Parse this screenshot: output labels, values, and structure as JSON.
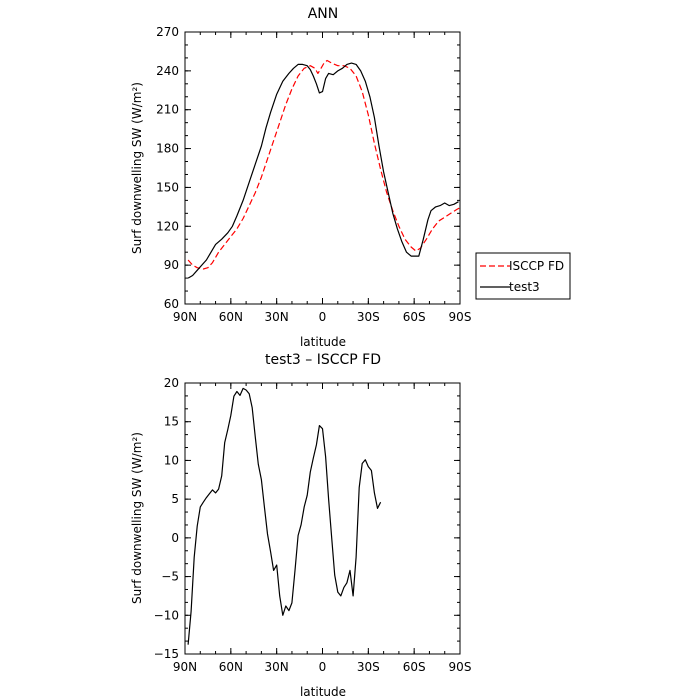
{
  "chart_data": [
    {
      "type": "line",
      "title": "ANN",
      "xlabel": "latitude",
      "ylabel": "Surf downwelling SW (W/m²)",
      "xlim": [
        90,
        -90
      ],
      "ylim": [
        60,
        270
      ],
      "x_ticks": [
        90,
        60,
        30,
        0,
        -30,
        -60,
        -90
      ],
      "x_tick_labels": [
        "90N",
        "60N",
        "30N",
        "0",
        "30S",
        "60S",
        "90S"
      ],
      "y_ticks": [
        60,
        90,
        120,
        150,
        180,
        210,
        240,
        270
      ],
      "y_tick_labels": [
        "60",
        "90",
        "120",
        "150",
        "180",
        "210",
        "240",
        "270"
      ],
      "legend_position": "right, outside",
      "series": [
        {
          "name": "ISCCP FD",
          "color": "#ff0000",
          "dash": "dashed",
          "points": [
            [
              88,
              94
            ],
            [
              85,
              90
            ],
            [
              82,
              88
            ],
            [
              78,
              87
            ],
            [
              75,
              88
            ],
            [
              72,
              92
            ],
            [
              68,
              100
            ],
            [
              64,
              106
            ],
            [
              60,
              112
            ],
            [
              56,
              118
            ],
            [
              52,
              126
            ],
            [
              48,
              136
            ],
            [
              44,
              146
            ],
            [
              40,
              158
            ],
            [
              36,
              172
            ],
            [
              32,
              186
            ],
            [
              28,
              200
            ],
            [
              24,
              214
            ],
            [
              20,
              226
            ],
            [
              16,
              236
            ],
            [
              12,
              242
            ],
            [
              8,
              244
            ],
            [
              5,
              242
            ],
            [
              3,
              238
            ],
            [
              1,
              242
            ],
            [
              -1,
              246
            ],
            [
              -3,
              248
            ],
            [
              -6,
              246
            ],
            [
              -10,
              244
            ],
            [
              -14,
              244
            ],
            [
              -18,
              242
            ],
            [
              -22,
              236
            ],
            [
              -26,
              224
            ],
            [
              -30,
              206
            ],
            [
              -34,
              184
            ],
            [
              -38,
              164
            ],
            [
              -42,
              146
            ],
            [
              -46,
              132
            ],
            [
              -50,
              120
            ],
            [
              -54,
              110
            ],
            [
              -58,
              104
            ],
            [
              -61,
              101
            ],
            [
              -64,
              103
            ],
            [
              -68,
              110
            ],
            [
              -72,
              118
            ],
            [
              -76,
              124
            ],
            [
              -80,
              127
            ],
            [
              -84,
              130
            ],
            [
              -88,
              133
            ],
            [
              -89.5,
              134
            ]
          ]
        },
        {
          "name": "test3",
          "color": "#000000",
          "dash": "solid",
          "points": [
            [
              88,
              80
            ],
            [
              85,
              82
            ],
            [
              82,
              86
            ],
            [
              79,
              90
            ],
            [
              76,
              94
            ],
            [
              73,
              100
            ],
            [
              70,
              106
            ],
            [
              66,
              110
            ],
            [
              62,
              115
            ],
            [
              59,
              120
            ],
            [
              56,
              128
            ],
            [
              52,
              140
            ],
            [
              48,
              154
            ],
            [
              44,
              168
            ],
            [
              40,
              182
            ],
            [
              37,
              196
            ],
            [
              34,
              208
            ],
            [
              30,
              222
            ],
            [
              26,
              232
            ],
            [
              22,
              238
            ],
            [
              19,
              242
            ],
            [
              16,
              245
            ],
            [
              13,
              245
            ],
            [
              10,
              244
            ],
            [
              8,
              241
            ],
            [
              6,
              236
            ],
            [
              4,
              230
            ],
            [
              2,
              223
            ],
            [
              0,
              224
            ],
            [
              -2,
              234
            ],
            [
              -4,
              238
            ],
            [
              -7,
              237
            ],
            [
              -10,
              240
            ],
            [
              -13,
              242
            ],
            [
              -16,
              245
            ],
            [
              -19,
              246
            ],
            [
              -22,
              245
            ],
            [
              -25,
              240
            ],
            [
              -28,
              232
            ],
            [
              -31,
              220
            ],
            [
              -34,
              204
            ],
            [
              -37,
              182
            ],
            [
              -40,
              162
            ],
            [
              -43,
              146
            ],
            [
              -46,
              130
            ],
            [
              -49,
              118
            ],
            [
              -52,
              108
            ],
            [
              -55,
              100
            ],
            [
              -58,
              97
            ],
            [
              -61,
              97
            ],
            [
              -63,
              97
            ],
            [
              -66,
              110
            ],
            [
              -69,
              125
            ],
            [
              -71,
              132
            ],
            [
              -74,
              135
            ],
            [
              -77,
              136
            ],
            [
              -80,
              138
            ],
            [
              -83,
              136
            ],
            [
              -86,
              137
            ],
            [
              -89,
              139
            ]
          ]
        }
      ]
    },
    {
      "type": "line",
      "title": "test3 – ISCCP FD",
      "xlabel": "latitude",
      "ylabel": "Surf downwelling SW (W/m²)",
      "xlim": [
        90,
        -90
      ],
      "ylim": [
        -15,
        20
      ],
      "x_ticks": [
        90,
        60,
        30,
        0,
        -30,
        -60,
        -90
      ],
      "x_tick_labels": [
        "90N",
        "60N",
        "30N",
        "0",
        "30S",
        "60S",
        "90S"
      ],
      "y_ticks": [
        -15,
        -10,
        -5,
        0,
        5,
        10,
        15,
        20
      ],
      "y_tick_labels": [
        "−15",
        "−10",
        "−5",
        "0",
        "5",
        "10",
        "15",
        "20"
      ],
      "series": [
        {
          "color": "#000000",
          "dash": "solid",
          "points": [
            [
              88,
              -13.8
            ],
            [
              86,
              -9.5
            ],
            [
              84,
              -2.5
            ],
            [
              82,
              1.5
            ],
            [
              80,
              4
            ],
            [
              78,
              4.6
            ],
            [
              76,
              5.2
            ],
            [
              74,
              5.7
            ],
            [
              72,
              6.2
            ],
            [
              70,
              5.8
            ],
            [
              68,
              6.3
            ],
            [
              66,
              8
            ],
            [
              64,
              12.3
            ],
            [
              62,
              14
            ],
            [
              60,
              15.8
            ],
            [
              58,
              18.3
            ],
            [
              56,
              18.9
            ],
            [
              54,
              18.4
            ],
            [
              52,
              19.3
            ],
            [
              50,
              19.1
            ],
            [
              48,
              18.6
            ],
            [
              46,
              16.8
            ],
            [
              44,
              13
            ],
            [
              42,
              9.5
            ],
            [
              40,
              7.5
            ],
            [
              38,
              4
            ],
            [
              36,
              0.5
            ],
            [
              34,
              -1.8
            ],
            [
              32,
              -4.2
            ],
            [
              30,
              -3.5
            ],
            [
              28,
              -7.5
            ],
            [
              26,
              -10
            ],
            [
              24,
              -8.8
            ],
            [
              22,
              -9.4
            ],
            [
              20,
              -8.4
            ],
            [
              18,
              -4.2
            ],
            [
              16,
              0.3
            ],
            [
              14,
              1.7
            ],
            [
              12,
              4
            ],
            [
              10,
              5.5
            ],
            [
              8,
              8.5
            ],
            [
              6,
              10.3
            ],
            [
              4,
              12
            ],
            [
              2,
              14.5
            ],
            [
              0,
              14.1
            ],
            [
              -2,
              10.5
            ],
            [
              -4,
              5
            ],
            [
              -6,
              0
            ],
            [
              -8,
              -4.8
            ],
            [
              -10,
              -7
            ],
            [
              -12,
              -7.5
            ],
            [
              -14,
              -6.4
            ],
            [
              -16,
              -5.8
            ],
            [
              -18,
              -4.2
            ],
            [
              -20,
              -7.5
            ],
            [
              -22,
              -2.5
            ],
            [
              -24,
              6.5
            ],
            [
              -26,
              9.6
            ],
            [
              -28,
              10.1
            ],
            [
              -30,
              9.2
            ],
            [
              -32,
              8.7
            ],
            [
              -34,
              5.8
            ],
            [
              -36,
              3.8
            ],
            [
              -38,
              4.6
            ]
          ]
        }
      ]
    }
  ]
}
